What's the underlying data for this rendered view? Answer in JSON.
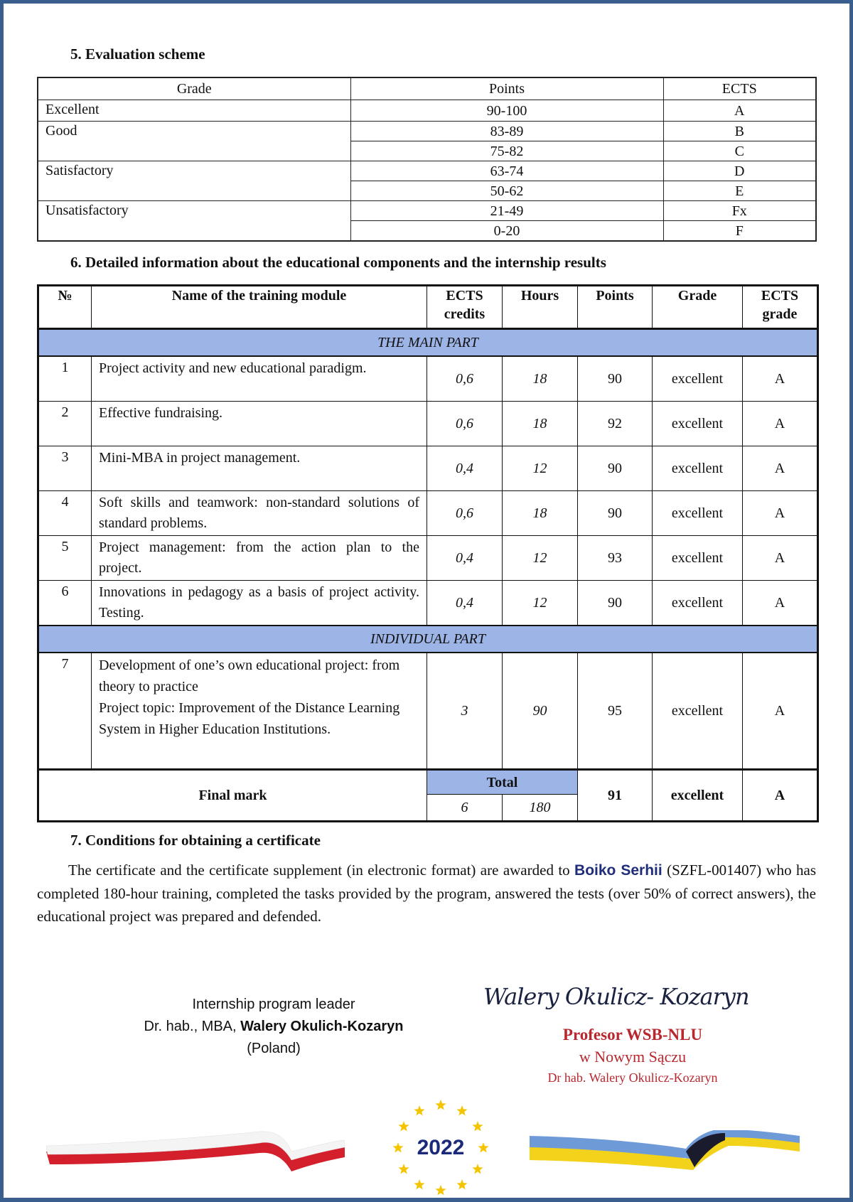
{
  "section5": {
    "title": "5. Evaluation scheme",
    "headers": [
      "Grade",
      "Points",
      "ECTS"
    ],
    "groups": [
      {
        "grade": "Excellent",
        "rows": [
          {
            "points": "90-100",
            "ects": "A"
          }
        ]
      },
      {
        "grade": "Good",
        "rows": [
          {
            "points": "83-89",
            "ects": "B"
          },
          {
            "points": "75-82",
            "ects": "C"
          }
        ]
      },
      {
        "grade": "Satisfactory",
        "rows": [
          {
            "points": "63-74",
            "ects": "D"
          },
          {
            "points": "50-62",
            "ects": "E"
          }
        ]
      },
      {
        "grade": "Unsatisfactory",
        "rows": [
          {
            "points": "21-49",
            "ects": "Fx"
          },
          {
            "points": "0-20",
            "ects": "F"
          }
        ]
      }
    ]
  },
  "section6": {
    "title": "6. Detailed information about the educational components and the internship results",
    "headers": {
      "num": "№",
      "name": "Name of the training module",
      "ects": "ECTS credits",
      "hours": "Hours",
      "points": "Points",
      "grade": "Grade",
      "ects_grade": "ECTS grade"
    },
    "main_part_label": "THE MAIN PART",
    "main_rows": [
      {
        "num": "1",
        "name": "Project activity and new educational paradigm.",
        "ects": "0,6",
        "hours": "18",
        "points": "90",
        "grade": "excellent",
        "ects_grade": "A"
      },
      {
        "num": "2",
        "name": "Effective fundraising.",
        "ects": "0,6",
        "hours": "18",
        "points": "92",
        "grade": "excellent",
        "ects_grade": "A"
      },
      {
        "num": "3",
        "name": "Mini-MBA in project management.",
        "ects": "0,4",
        "hours": "12",
        "points": "90",
        "grade": "excellent",
        "ects_grade": "A"
      },
      {
        "num": "4",
        "name": "Soft skills and teamwork: non-standard solutions of standard problems.",
        "ects": "0,6",
        "hours": "18",
        "points": "90",
        "grade": "excellent",
        "ects_grade": "A"
      },
      {
        "num": "5",
        "name": "Project management: from the action plan to the project.",
        "ects": "0,4",
        "hours": "12",
        "points": "93",
        "grade": "excellent",
        "ects_grade": "A"
      },
      {
        "num": "6",
        "name": "Innovations in pedagogy as a basis of project activity. Testing.",
        "ects": "0,4",
        "hours": "12",
        "points": "90",
        "grade": "excellent",
        "ects_grade": "A"
      }
    ],
    "individual_part_label": "INDIVIDUAL PART",
    "individual_rows": [
      {
        "num": "7",
        "name": "Development of one’s own educational project: from theory to practice\nProject topic: Improvement of the Distance Learning System in Higher Education Institutions.",
        "ects": "3",
        "hours": "90",
        "points": "95",
        "grade": "excellent",
        "ects_grade": "A"
      }
    ],
    "final": {
      "label": "Final mark",
      "total_label": "Total",
      "ects": "6",
      "hours": "180",
      "points": "91",
      "grade": "excellent",
      "ects_grade": "A"
    }
  },
  "section7": {
    "title": "7. Conditions for obtaining a certificate",
    "text_before": "The certificate and the certificate supplement (in electronic format) are awarded to ",
    "recipient": "Boiko Serhii",
    "text_after": " (SZFL-001407) who has completed 180-hour training, completed the tasks provided by the program, answered the tests (over 50% of correct answers), the educational project was prepared and defended."
  },
  "signature": {
    "role": "Internship program leader",
    "title_prefix": "Dr. hab., MBA, ",
    "name": "Walery Okulich-Kozaryn",
    "country": "(Poland)",
    "handwritten": "Walery Okulicz- Kozaryn",
    "stamp_line1": "Profesor WSB-NLU",
    "stamp_line2": "w Nowym Sączu",
    "stamp_line3": "Dr hab. Walery Okulicz-Kozaryn"
  },
  "footer": {
    "year": "2022"
  },
  "colors": {
    "frame": "#3a5f8f",
    "section_fill": "#9db4e6",
    "stamp": "#b8262e",
    "recipient": "#1f2d7a",
    "poland_red": "#d4202c",
    "ukraine_blue": "#6f9ad8",
    "ukraine_yellow": "#f2d21b",
    "eu_star": "#f5c400",
    "year": "#1a2a78"
  }
}
